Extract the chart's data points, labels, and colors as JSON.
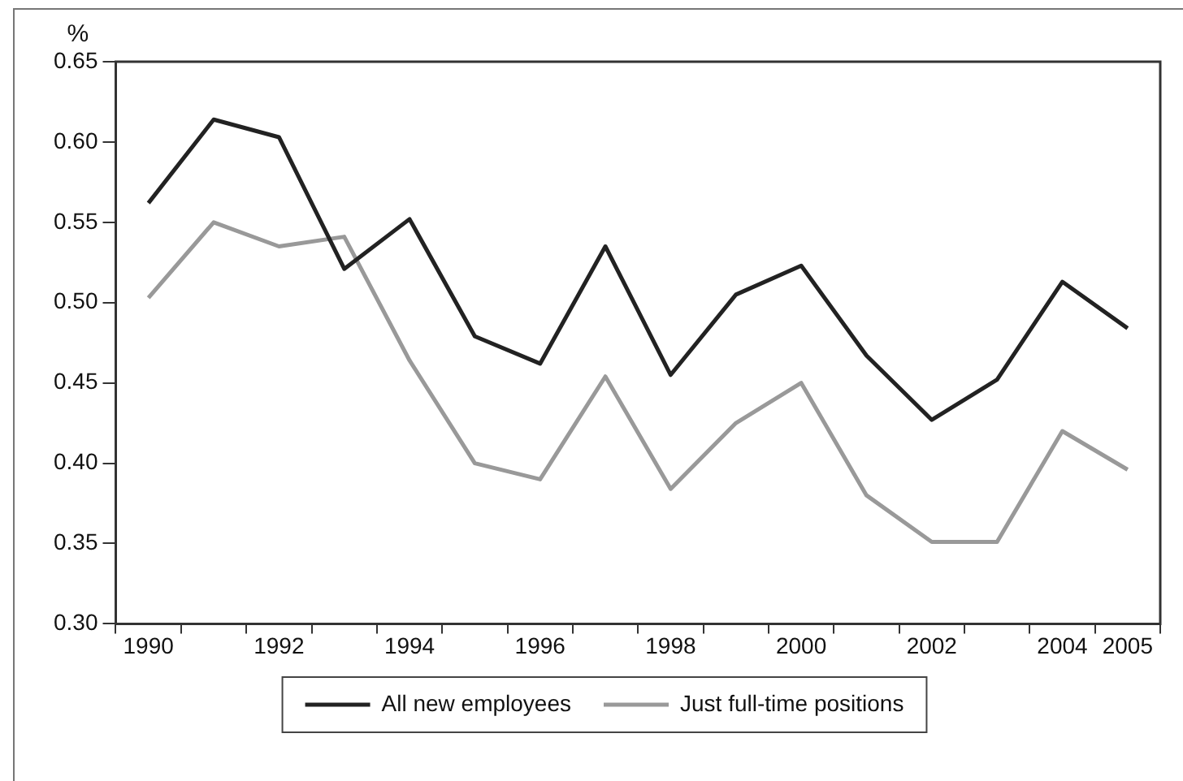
{
  "chart_data": {
    "type": "line",
    "ylabel": "%",
    "categories": [
      "1990",
      null,
      "1992",
      null,
      "1994",
      null,
      "1996",
      null,
      "1998",
      null,
      "2000",
      null,
      "2002",
      null,
      "2004",
      "2005"
    ],
    "series": [
      {
        "name": "All new employees",
        "color": "#222222",
        "values": [
          0.562,
          0.614,
          0.603,
          0.521,
          0.552,
          0.479,
          0.462,
          0.535,
          0.455,
          0.505,
          0.523,
          0.467,
          0.427,
          0.452,
          0.513,
          0.484
        ]
      },
      {
        "name": "Just full-time positions",
        "color": "#999999",
        "values": [
          0.503,
          0.55,
          0.535,
          0.541,
          0.464,
          0.4,
          0.39,
          0.454,
          0.384,
          0.425,
          0.45,
          0.38,
          0.351,
          0.351,
          0.42,
          0.396
        ]
      }
    ],
    "ylim": [
      0.3,
      0.65
    ],
    "yticks": [
      {
        "value": 0.3,
        "label": "0.30"
      },
      {
        "value": 0.35,
        "label": "0.35"
      },
      {
        "value": 0.4,
        "label": "0.40"
      },
      {
        "value": 0.45,
        "label": "0.45"
      },
      {
        "value": 0.5,
        "label": "0.50"
      },
      {
        "value": 0.55,
        "label": "0.55"
      },
      {
        "value": 0.6,
        "label": "0.60"
      },
      {
        "value": 0.65,
        "label": "0.65"
      }
    ],
    "grid": false,
    "legend": "bottom",
    "marker": "none",
    "line_style": "solid"
  }
}
